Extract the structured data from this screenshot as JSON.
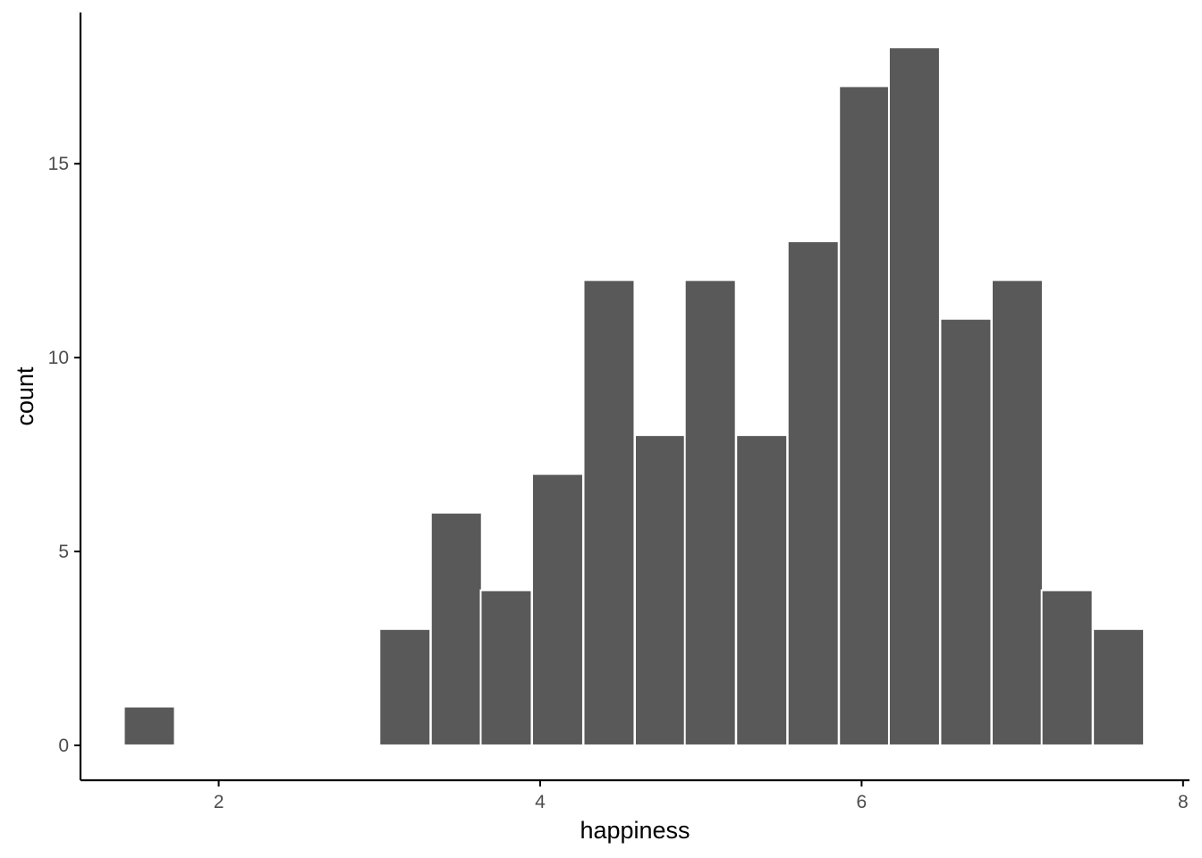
{
  "chart_data": {
    "type": "histogram",
    "xlabel": "happiness",
    "ylabel": "count",
    "xlim": [
      1.14,
      8.04
    ],
    "ylim": [
      -0.9,
      18.9
    ],
    "x_ticks": [
      2,
      4,
      6,
      8
    ],
    "y_ticks": [
      0,
      5,
      10,
      15
    ],
    "bin_width": 0.317,
    "bins": [
      {
        "x0": 1.41,
        "count": 1
      },
      {
        "x0": 3.0,
        "count": 3
      },
      {
        "x0": 3.32,
        "count": 6
      },
      {
        "x0": 3.63,
        "count": 4
      },
      {
        "x0": 3.95,
        "count": 7
      },
      {
        "x0": 4.27,
        "count": 12
      },
      {
        "x0": 4.59,
        "count": 8
      },
      {
        "x0": 4.9,
        "count": 12
      },
      {
        "x0": 5.22,
        "count": 8
      },
      {
        "x0": 5.54,
        "count": 13
      },
      {
        "x0": 5.86,
        "count": 17
      },
      {
        "x0": 6.17,
        "count": 18
      },
      {
        "x0": 6.49,
        "count": 11
      },
      {
        "x0": 6.81,
        "count": 12
      },
      {
        "x0": 7.12,
        "count": 4
      },
      {
        "x0": 7.44,
        "count": 3
      }
    ],
    "grid": false,
    "bar_color": "#595959",
    "bar_outline": "#ffffff",
    "axis_color": "#000000",
    "tick_label_color": "#4d4d4d"
  }
}
